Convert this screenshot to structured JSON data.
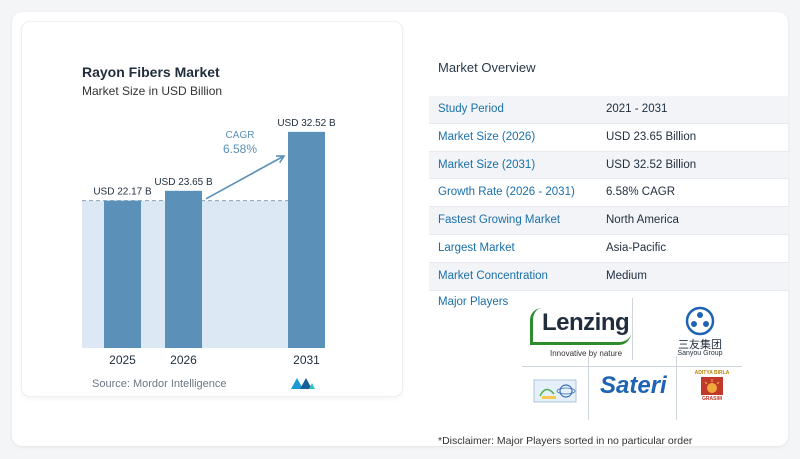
{
  "chart_data": {
    "type": "bar",
    "title": "Rayon Fibers Market",
    "subtitle": "Market Size in USD Billion",
    "categories": [
      "2025",
      "2026",
      "2031"
    ],
    "values": [
      22.17,
      23.65,
      32.52
    ],
    "value_labels": [
      "USD 22.17 B",
      "USD 23.65 B",
      "USD 32.52 B"
    ],
    "cagr_label": "CAGR",
    "cagr_value": "6.58%",
    "ylim": [
      0,
      34
    ],
    "xlabel": "",
    "ylabel": "",
    "colors": {
      "bar": "#5b90b8",
      "bar_light": "#7aa7ca",
      "band": "#dce9f4",
      "arrow": "#5b90b8",
      "dashed": "#8aa4bb"
    }
  },
  "source_text": "Source:  Mordor Intelligence",
  "overview": {
    "title": "Market Overview",
    "rows": [
      {
        "label": "Study Period",
        "value": "2021 - 2031"
      },
      {
        "label": "Market Size (2026)",
        "value": "USD 23.65 Billion"
      },
      {
        "label": "Market Size (2031)",
        "value": "USD 32.52 Billion"
      },
      {
        "label": "Growth Rate (2026 - 2031)",
        "value": "6.58% CAGR"
      },
      {
        "label": "Fastest Growing Market",
        "value": "North America"
      },
      {
        "label": "Largest Market",
        "value": "Asia-Pacific"
      },
      {
        "label": "Market Concentration",
        "value": "Medium"
      }
    ],
    "players_label": "Major Players"
  },
  "players": {
    "lenzing_name": "Lenzing",
    "lenzing_tagline": "Innovative by nature",
    "sanyou_cn": "三友集团",
    "sanyou_en": "Sanyou Group",
    "sateri": "Sateri",
    "grasim_top": "ADITYA BIRLA",
    "grasim_bottom": "GRASIM"
  },
  "disclaimer": "*Disclaimer: Major Players sorted in no particular order"
}
